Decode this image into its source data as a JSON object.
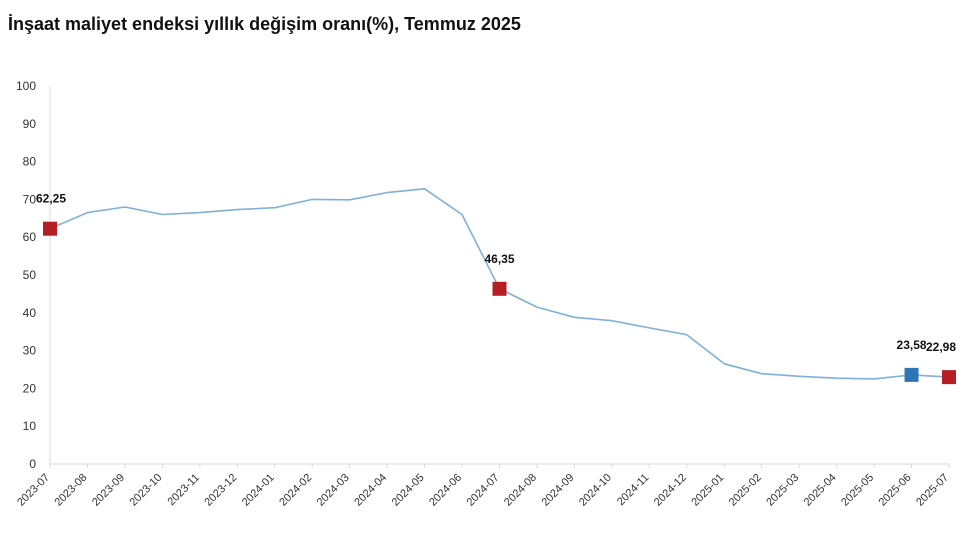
{
  "chart_data": {
    "type": "line",
    "title": "İnşaat maliyet endeksi yıllık değişim oranı(%), Temmuz 2025",
    "xlabel": "",
    "ylabel": "",
    "ylim": [
      0,
      100
    ],
    "yticks": [
      "0",
      "10",
      "20",
      "30",
      "40",
      "50",
      "60",
      "70",
      "80",
      "90",
      "100"
    ],
    "grid": false,
    "categories": [
      "2023-07",
      "2023-08",
      "2023-09",
      "2023-10",
      "2023-11",
      "2023-12",
      "2024-01",
      "2024-02",
      "2024-03",
      "2024-04",
      "2024-05",
      "2024-06",
      "2024-07",
      "2024-08",
      "2024-09",
      "2024-10",
      "2024-11",
      "2024-12",
      "2025-01",
      "2025-02",
      "2025-03",
      "2025-04",
      "2025-05",
      "2025-06",
      "2025-07"
    ],
    "series": [
      {
        "values": [
          62.25,
          66.5,
          68.0,
          66.0,
          66.5,
          67.3,
          67.8,
          70.0,
          69.9,
          71.8,
          72.8,
          66.0,
          46.35,
          41.5,
          38.8,
          37.9,
          36.0,
          34.2,
          26.5,
          23.9,
          23.2,
          22.7,
          22.5,
          23.58,
          22.98
        ],
        "color": "#7fb0d8"
      }
    ],
    "markers": [
      {
        "index": 0,
        "label": "62,25",
        "color": "#b51f24"
      },
      {
        "index": 12,
        "label": "46,35",
        "color": "#b51f24"
      },
      {
        "index": 23,
        "label": "23,58",
        "color": "#2e75b6"
      },
      {
        "index": 24,
        "label": "22,98",
        "color": "#b51f24"
      }
    ]
  }
}
